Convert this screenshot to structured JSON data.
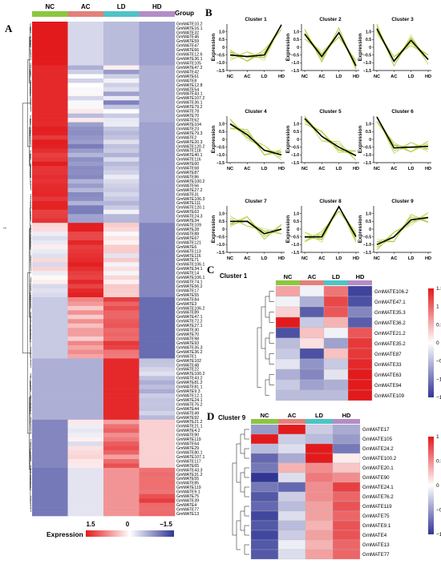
{
  "colors": {
    "high": "#e31a1c",
    "mid": "#ffffff",
    "low": "#313695",
    "group_NC": "#8cc63f",
    "group_AC": "#e3807a",
    "group_LD": "#4fc3c5",
    "group_HD": "#b48cc6",
    "profile_thin": "#c8d43c",
    "profile_mean": "#000000"
  },
  "panel_a": {
    "label": "A",
    "group_title": "Group",
    "columns": [
      "NC",
      "AC",
      "LD",
      "HD"
    ],
    "legend_title": "Expression",
    "legend_ticks": [
      "1.5",
      "0",
      "−1.5"
    ],
    "genes": [
      "GmMATE10.2",
      "GmMATE16.1",
      "GmMATE32",
      "GmMATE46",
      "GmMATE59",
      "GmMATE47",
      "GmMATE66",
      "GmMATE12.6",
      "GmMATE36.1",
      "GmMATE105",
      "GmMATE47.2",
      "GmMATE42",
      "GmMATE61",
      "GmMATE8",
      "GmMATE12.8",
      "GmMATE54",
      "GmMATE43.1",
      "GmMATE107.2",
      "GmMATE36.1",
      "GmMATE79.2",
      "GmMATE78",
      "GmMATE70",
      "GmMATE62",
      "GmMATE104",
      "GmMATE23",
      "GmMATE79.3",
      "GmMATE2",
      "GmMATE20.3",
      "GmMATE120.2",
      "GmMATE118",
      "GmMATE40.1",
      "GmMATE116",
      "GmMATE60",
      "GmMATE68",
      "GmMATE87",
      "GmMATE86",
      "GmMATE100.2",
      "GmMATE56",
      "GmMATE27.2",
      "GmMATE31",
      "GmMATE106.3",
      "GmMATE111",
      "GmMATE120.1",
      "GmMATE63",
      "GmMATE24.3",
      "GmMATE34",
      "GmMATE109",
      "GmMATE28",
      "GmMATE88",
      "GmMATE67",
      "GmMATE121",
      "GmMATE6",
      "GmMATE113",
      "GmMATE116",
      "GmMATE71",
      "GmMATE106.1",
      "GmMATE34.1",
      "GmMATE14",
      "GmMATE106.1",
      "GmMATE74.1",
      "GmMATE56.2",
      "GmMATE17",
      "GmMATE55",
      "GmMATE84",
      "GmMATE3",
      "GmMATE106.2",
      "GmMATE89",
      "GmMATE47.1",
      "GmMATE72.2",
      "GmMATE27.1",
      "GmMATE30",
      "GmMATE70",
      "GmMATE98",
      "GmMATE93",
      "GmMATE35.3",
      "GmMATE36.2",
      "GmMATE1",
      "GmMATE102",
      "GmMATE48",
      "GmMATE22",
      "GmMATE100.2",
      "GmMATE43.2",
      "GmMATE81.2",
      "GmMATE81.1",
      "GmMATE9.3",
      "GmMATE12.1",
      "GmMATE24.1",
      "GmMATE76.2",
      "GmMATE44",
      "GmMATE49",
      "GmMATE92",
      "GmMATE21.2",
      "GmMATE21.1",
      "GmMATE4.2",
      "GmMATE90",
      "GmMATE119",
      "GmMATE64",
      "GmMATE29",
      "GmMATE80.1",
      "GmMATE107.1",
      "GmMATE117",
      "GmMATE65",
      "GmMATE43.3",
      "GmMATE31.2",
      "GmMATE55",
      "GmMATE85",
      "GmMATE119",
      "GmMATE9.1",
      "GmMATE75",
      "GmMATE39",
      "GmMATE4",
      "GmMATE77",
      "GmMATE13"
    ]
  },
  "panel_b": {
    "label": "B",
    "x_ticks": [
      "NC",
      "AC",
      "LD",
      "HD"
    ],
    "ylabel": "Expression",
    "y_ticks": [
      "1.5",
      "1.0",
      "0.5",
      "0",
      "−0.5",
      "−1.0",
      "−1.5"
    ],
    "ylim": [
      -1.5,
      1.5
    ]
  },
  "panel_c": {
    "label": "C",
    "title": "Cluster 1",
    "columns": [
      "NC",
      "AC",
      "LD",
      "HD"
    ],
    "legend_ticks": [
      "1.5",
      "1",
      "0.5",
      "0",
      "−0.5",
      "−1",
      "−1.5"
    ]
  },
  "panel_d": {
    "label": "D",
    "title": "Cluster 9",
    "columns": [
      "NC",
      "AC",
      "LD",
      "HD"
    ],
    "legend_ticks": [
      "1",
      "0.5",
      "0",
      "−0.5",
      "−1"
    ]
  },
  "chart_data": [
    {
      "type": "line",
      "title": "Cluster 1",
      "x": [
        "NC",
        "AC",
        "LD",
        "HD"
      ],
      "ylabel": "Expression",
      "ylim": [
        -1.5,
        1.5
      ],
      "series": [
        {
          "values": [
            -0.5,
            -0.6,
            -0.5,
            1.45
          ]
        }
      ]
    },
    {
      "type": "line",
      "title": "Cluster 2",
      "x": [
        "NC",
        "AC",
        "LD",
        "HD"
      ],
      "ylabel": "Expression",
      "ylim": [
        -1.5,
        1.5
      ],
      "series": [
        {
          "values": [
            0.85,
            -0.6,
            0.95,
            -1.2
          ]
        }
      ]
    },
    {
      "type": "line",
      "title": "Cluster 3",
      "x": [
        "NC",
        "AC",
        "LD",
        "HD"
      ],
      "ylabel": "Expression",
      "ylim": [
        -1.5,
        1.5
      ],
      "series": [
        {
          "values": [
            1.2,
            -0.9,
            0.45,
            -0.8
          ]
        }
      ]
    },
    {
      "type": "line",
      "title": "Cluster 4",
      "x": [
        "NC",
        "AC",
        "LD",
        "HD"
      ],
      "ylabel": "Expression",
      "ylim": [
        -1.5,
        1.5
      ],
      "series": [
        {
          "values": [
            1.0,
            0.3,
            -0.7,
            -1.0
          ]
        }
      ]
    },
    {
      "type": "line",
      "title": "Cluster 5",
      "x": [
        "NC",
        "AC",
        "LD",
        "HD"
      ],
      "ylabel": "Expression",
      "ylim": [
        -1.5,
        1.5
      ],
      "series": [
        {
          "values": [
            1.35,
            0.2,
            -0.5,
            -1.05
          ]
        }
      ]
    },
    {
      "type": "line",
      "title": "Cluster 6",
      "x": [
        "NC",
        "AC",
        "LD",
        "HD"
      ],
      "ylabel": "Expression",
      "ylim": [
        -1.5,
        1.5
      ],
      "series": [
        {
          "values": [
            1.45,
            -0.55,
            -0.5,
            -0.45
          ]
        }
      ]
    },
    {
      "type": "line",
      "title": "Cluster 7",
      "x": [
        "NC",
        "AC",
        "LD",
        "HD"
      ],
      "ylabel": "Expression",
      "ylim": [
        -1.5,
        1.5
      ],
      "series": [
        {
          "values": [
            0.5,
            0.5,
            -0.3,
            0.0
          ]
        }
      ]
    },
    {
      "type": "line",
      "title": "Cluster 8",
      "x": [
        "NC",
        "AC",
        "LD",
        "HD"
      ],
      "ylabel": "Expression",
      "ylim": [
        -1.5,
        1.5
      ],
      "series": [
        {
          "values": [
            -0.5,
            -0.5,
            1.45,
            -0.5
          ]
        }
      ]
    },
    {
      "type": "line",
      "title": "Cluster 9",
      "x": [
        "NC",
        "AC",
        "LD",
        "HD"
      ],
      "ylabel": "Expression",
      "ylim": [
        -1.5,
        1.5
      ],
      "series": [
        {
          "values": [
            -1.0,
            -0.5,
            0.6,
            0.75
          ]
        }
      ]
    },
    {
      "type": "heatmap",
      "title": "Cluster 1",
      "x": [
        "NC",
        "AC",
        "LD",
        "HD"
      ],
      "y": [
        "GmMATE106.2",
        "GmMATE47.1",
        "GmMATE35.3",
        "GmMATE36.2",
        "GmMATE21.2",
        "GmMATE35.2",
        "GmMATE87",
        "GmMATE33",
        "GmMATE63",
        "GmMATE94",
        "GmMATE109"
      ],
      "values": [
        [
          0.6,
          -0.1,
          0.9,
          -1.4
        ],
        [
          -0.1,
          -0.6,
          1.2,
          -1.3
        ],
        [
          0.3,
          -1.2,
          1.1,
          -0.9
        ],
        [
          1.5,
          -0.4,
          0.5,
          -1.2
        ],
        [
          -1.3,
          0.4,
          -0.1,
          1.1
        ],
        [
          -0.5,
          0.2,
          -0.7,
          1.3
        ],
        [
          -0.4,
          -1.3,
          0.4,
          1.3
        ],
        [
          -0.2,
          -0.8,
          -0.4,
          1.4
        ],
        [
          -0.6,
          -0.9,
          -0.2,
          1.5
        ],
        [
          -0.4,
          -0.7,
          -0.6,
          1.6
        ],
        [
          -0.5,
          -0.5,
          -0.5,
          1.5
        ]
      ],
      "legend_range": [
        -1.5,
        1.5
      ]
    },
    {
      "type": "heatmap",
      "title": "Cluster 9",
      "x": [
        "NC",
        "AC",
        "LD",
        "HD"
      ],
      "y": [
        "GmMATE17",
        "GmMATE105",
        "GmMATE24.2",
        "GmMATE100.2",
        "GmMATE20.1",
        "GmMATE90",
        "GmMATE24.1",
        "GmMATE76.2",
        "GmMATE119",
        "GmMATE75",
        "GmMATE9.1",
        "GmMATE4",
        "GmMATE13",
        "GmMATE77"
      ],
      "values": [
        [
          -0.6,
          1.4,
          -0.3,
          -0.5
        ],
        [
          1.3,
          -0.3,
          -0.4,
          -0.6
        ],
        [
          -0.4,
          -0.2,
          1.4,
          -0.8
        ],
        [
          -0.9,
          -0.5,
          1.3,
          0.1
        ],
        [
          -0.8,
          0.4,
          0.6,
          0.3
        ],
        [
          -1.2,
          -0.2,
          0.7,
          0.6
        ],
        [
          -0.8,
          -0.9,
          0.6,
          1.0
        ],
        [
          -1.0,
          -0.3,
          0.6,
          0.8
        ],
        [
          -0.9,
          -0.4,
          0.5,
          0.9
        ],
        [
          -1.1,
          -0.2,
          0.5,
          0.8
        ],
        [
          -1.0,
          -0.4,
          0.4,
          0.9
        ],
        [
          -1.1,
          -0.3,
          0.5,
          0.9
        ],
        [
          -1.0,
          -0.1,
          0.4,
          0.8
        ],
        [
          -1.0,
          -0.2,
          0.5,
          0.8
        ]
      ],
      "legend_range": [
        -1,
        1
      ]
    }
  ]
}
